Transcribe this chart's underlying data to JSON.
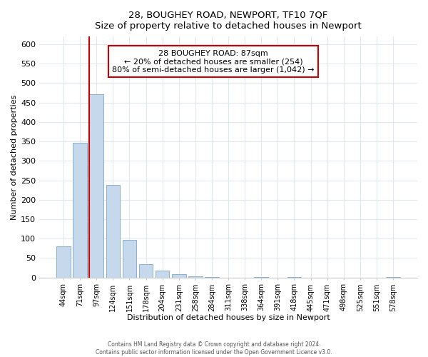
{
  "title": "28, BOUGHEY ROAD, NEWPORT, TF10 7QF",
  "subtitle": "Size of property relative to detached houses in Newport",
  "xlabel": "Distribution of detached houses by size in Newport",
  "ylabel": "Number of detached properties",
  "bar_labels": [
    "44sqm",
    "71sqm",
    "97sqm",
    "124sqm",
    "151sqm",
    "178sqm",
    "204sqm",
    "231sqm",
    "258sqm",
    "284sqm",
    "311sqm",
    "338sqm",
    "364sqm",
    "391sqm",
    "418sqm",
    "445sqm",
    "471sqm",
    "498sqm",
    "525sqm",
    "551sqm",
    "578sqm"
  ],
  "bar_values": [
    80,
    347,
    472,
    238,
    97,
    35,
    18,
    8,
    3,
    2,
    0,
    0,
    2,
    0,
    2,
    0,
    0,
    0,
    0,
    0,
    2
  ],
  "bar_color": "#c6d9ec",
  "bar_edge_color": "#8ab0cc",
  "vline_color": "#cc0000",
  "annotation_title": "28 BOUGHEY ROAD: 87sqm",
  "annotation_line1": "← 20% of detached houses are smaller (254)",
  "annotation_line2": "80% of semi-detached houses are larger (1,042) →",
  "annotation_box_facecolor": "#ffffff",
  "annotation_box_edgecolor": "#cc0000",
  "ylim": [
    0,
    620
  ],
  "yticks": [
    0,
    50,
    100,
    150,
    200,
    250,
    300,
    350,
    400,
    450,
    500,
    550,
    600
  ],
  "footer1": "Contains HM Land Registry data © Crown copyright and database right 2024.",
  "footer2": "Contains public sector information licensed under the Open Government Licence v3.0."
}
